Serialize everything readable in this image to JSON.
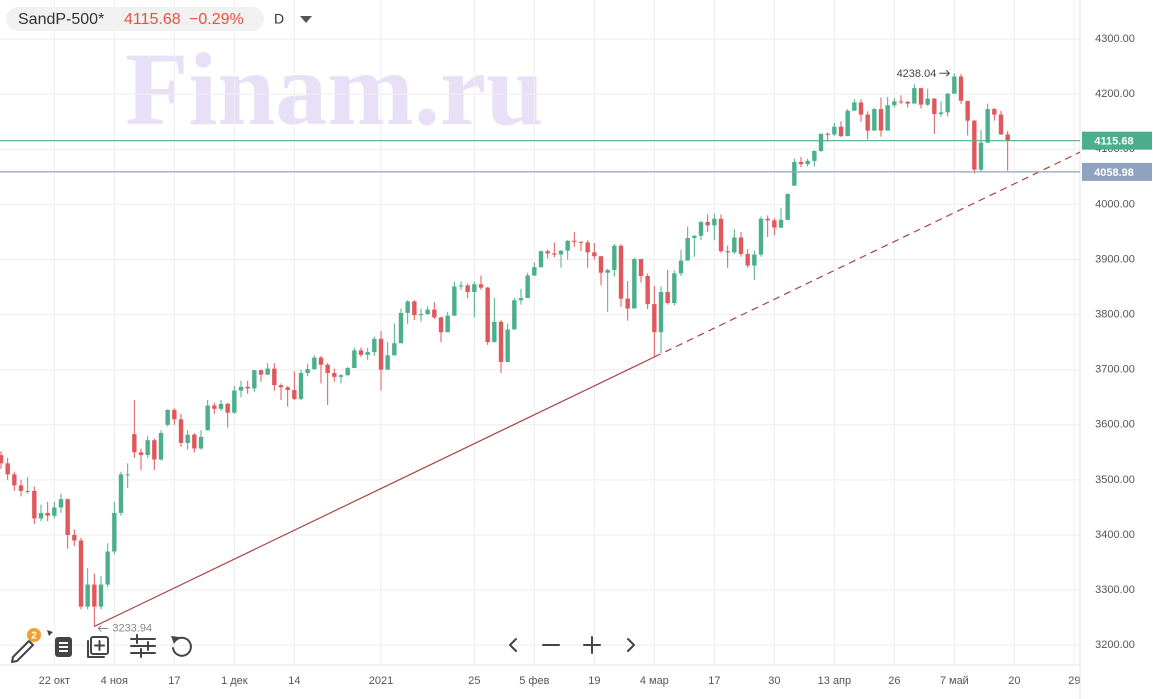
{
  "header": {
    "symbol": "SandP-500*",
    "last": "4115.68",
    "change": "−0.29%",
    "interval": "D",
    "badge": "2"
  },
  "chart_data": {
    "type": "candlestick",
    "watermark": "Finam.ru",
    "up_color": "#4caf8c",
    "down_color": "#e0585b",
    "grid": true,
    "ylim": [
      3164,
      4371
    ],
    "yticks": [
      {
        "value": 3200,
        "label": "3200.00"
      },
      {
        "value": 3300,
        "label": "3300.00"
      },
      {
        "value": 3400,
        "label": "3400.00"
      },
      {
        "value": 3500,
        "label": "3500.00"
      },
      {
        "value": 3600,
        "label": "3600.00"
      },
      {
        "value": 3700,
        "label": "3700.00"
      },
      {
        "value": 3800,
        "label": "3800.00"
      },
      {
        "value": 3900,
        "label": "3900.00"
      },
      {
        "value": 4000,
        "label": "4000.00"
      },
      {
        "value": 4100,
        "label": "4100.00"
      },
      {
        "value": 4200,
        "label": "4200.00"
      },
      {
        "value": 4300,
        "label": "4300.00"
      }
    ],
    "categories": [
      null,
      null,
      null,
      null,
      null,
      null,
      null,
      null,
      "22 окт",
      null,
      null,
      null,
      null,
      null,
      null,
      null,
      null,
      "4 ноя",
      null,
      null,
      null,
      null,
      null,
      null,
      null,
      null,
      "17",
      null,
      null,
      null,
      null,
      null,
      null,
      null,
      null,
      "1 дек",
      null,
      null,
      null,
      null,
      null,
      null,
      null,
      null,
      "14",
      null,
      null,
      null,
      null,
      null,
      null,
      null,
      null,
      null,
      null,
      null,
      null,
      "2021",
      null,
      null,
      null,
      null,
      null,
      null,
      null,
      null,
      null,
      null,
      null,
      null,
      null,
      "25",
      null,
      null,
      null,
      null,
      null,
      null,
      null,
      null,
      "5 фев",
      null,
      null,
      null,
      null,
      null,
      null,
      null,
      null,
      "19",
      null,
      null,
      null,
      null,
      null,
      null,
      null,
      null,
      "4 мар",
      null,
      null,
      null,
      null,
      null,
      null,
      null,
      null,
      "17",
      null,
      null,
      null,
      null,
      null,
      null,
      null,
      null,
      "30",
      null,
      null,
      null,
      null,
      null,
      null,
      null,
      null,
      "13 апр",
      null,
      null,
      null,
      null,
      null,
      null,
      null,
      null,
      "26",
      null,
      null,
      null,
      null,
      null,
      null,
      null,
      null,
      "7 май",
      null,
      null,
      null,
      null,
      null,
      null,
      null,
      null,
      "20",
      null,
      null,
      null,
      null,
      null,
      null,
      null,
      null,
      "29"
    ],
    "open": [
      3545,
      3530,
      3510,
      3490,
      3480,
      3480,
      3430,
      3440,
      3435,
      3450,
      3465,
      3400,
      3390,
      3270,
      3310,
      3270,
      3310,
      3370,
      3440,
      3510,
      3583,
      3550,
      3545,
      3572,
      3537,
      3600,
      3627,
      3610,
      3567,
      3582,
      3557,
      3590,
      3635,
      3629,
      3638,
      3622,
      3662,
      3669,
      3666,
      3699,
      3691,
      3702,
      3672,
      3668,
      3663,
      3647,
      3694,
      3701,
      3722,
      3709,
      3694,
      3687,
      3690,
      3703,
      3735,
      3727,
      3732,
      3756,
      3700,
      3726,
      3748,
      3803,
      3824,
      3799,
      3801,
      3809,
      3795,
      3768,
      3798,
      3851,
      3853,
      3841,
      3855,
      3849,
      3750,
      3787,
      3714,
      3773,
      3826,
      3830,
      3871,
      3886,
      3915,
      3911,
      3909,
      3916,
      3934,
      3932,
      3931,
      3913,
      3906,
      3876,
      3881,
      3925,
      3829,
      3811,
      3901,
      3870,
      3819,
      3768,
      3841,
      3821,
      3875,
      3898,
      3939,
      3943,
      3968,
      3962,
      3974,
      3915,
      3913,
      3940,
      3910,
      3889,
      3909,
      3974,
      3971,
      3958,
      3972,
      4034,
      4077,
      4073,
      4079,
      4097,
      4128,
      4127,
      4141,
      4124,
      4170,
      4185,
      4163,
      4134,
      4173,
      4134,
      4180,
      4187,
      4186,
      4183,
      4211,
      4181,
      4192,
      4164,
      4167,
      4201,
      4232,
      4188,
      4152,
      4063,
      4112,
      4173,
      4163,
      4127,
      null,
      null,
      null,
      null,
      null,
      null,
      null,
      null,
      null,
      null
    ],
    "high": [
      3552,
      3540,
      3515,
      3500,
      3505,
      3488,
      3455,
      3460,
      3460,
      3475,
      3466,
      3410,
      3395,
      3340,
      3330,
      3325,
      3385,
      3460,
      3515,
      3530,
      3645,
      3557,
      3580,
      3575,
      3590,
      3628,
      3630,
      3620,
      3590,
      3585,
      3590,
      3645,
      3640,
      3645,
      3640,
      3670,
      3680,
      3680,
      3700,
      3700,
      3712,
      3712,
      3675,
      3670,
      3697,
      3700,
      3711,
      3726,
      3725,
      3712,
      3702,
      3692,
      3705,
      3740,
      3740,
      3740,
      3760,
      3770,
      3750,
      3784,
      3811,
      3826,
      3826,
      3811,
      3815,
      3823,
      3796,
      3805,
      3860,
      3860,
      3856,
      3860,
      3871,
      3850,
      3830,
      3790,
      3784,
      3830,
      3847,
      3876,
      3895,
      3916,
      3918,
      3931,
      3917,
      3935,
      3950,
      3933,
      3935,
      3930,
      3906,
      3883,
      3928,
      3928,
      3861,
      3903,
      3901,
      3875,
      3852,
      3851,
      3881,
      3880,
      3918,
      3960,
      3944,
      3970,
      3982,
      3983,
      3982,
      3925,
      3955,
      3950,
      3919,
      3916,
      3978,
      3980,
      3975,
      3994,
      4020,
      4083,
      4086,
      4083,
      4098,
      4129,
      4131,
      4148,
      4151,
      4173,
      4191,
      4191,
      4169,
      4175,
      4194,
      4195,
      4193,
      4198,
      4188,
      4218,
      4212,
      4210,
      4193,
      4187,
      4202,
      4238.04,
      4237,
      4188,
      4153,
      4135,
      4183,
      4175,
      4170,
      4133,
      null,
      null,
      null,
      null,
      null,
      null,
      null,
      null,
      null,
      null
    ],
    "low": [
      3520,
      3500,
      3480,
      3470,
      3475,
      3420,
      3425,
      3425,
      3430,
      3440,
      3375,
      3380,
      3265,
      3265,
      3233.94,
      3265,
      3305,
      3365,
      3435,
      3485,
      3540,
      3518,
      3540,
      3518,
      3535,
      3597,
      3600,
      3560,
      3555,
      3550,
      3555,
      3590,
      3620,
      3625,
      3595,
      3620,
      3650,
      3656,
      3660,
      3678,
      3690,
      3662,
      3645,
      3633,
      3645,
      3645,
      3688,
      3700,
      3675,
      3636,
      3678,
      3675,
      3689,
      3703,
      3723,
      3718,
      3725,
      3662,
      3700,
      3726,
      3748,
      3783,
      3790,
      3787,
      3800,
      3792,
      3750,
      3768,
      3798,
      3845,
      3830,
      3795,
      3845,
      3745,
      3750,
      3694,
      3714,
      3773,
      3818,
      3830,
      3870,
      3886,
      3902,
      3904,
      3885,
      3900,
      3923,
      3915,
      3885,
      3900,
      3853,
      3805,
      3869,
      3814,
      3789,
      3811,
      3858,
      3810,
      3723,
      3730,
      3818,
      3817,
      3870,
      3898,
      3905,
      3935,
      3950,
      3935,
      3912,
      3885,
      3910,
      3905,
      3885,
      3863,
      3905,
      3941,
      3944,
      3957,
      3972,
      4034,
      4068,
      4069,
      4069,
      4095,
      4114,
      4124,
      4122,
      4124,
      4170,
      4150,
      4118,
      4134,
      4123,
      4134,
      4176,
      4182,
      4176,
      4183,
      4174,
      4179,
      4128,
      4159,
      4160,
      4201,
      4182,
      4125,
      4056,
      4060,
      4112,
      4152,
      4126,
      4061,
      null,
      null,
      null,
      null,
      null,
      null,
      null,
      null,
      null,
      null
    ],
    "close": [
      3530,
      3510,
      3490,
      3480,
      3480,
      3430,
      3440,
      3435,
      3450,
      3465,
      3400,
      3390,
      3270,
      3310,
      3270,
      3310,
      3370,
      3440,
      3510,
      3510,
      3550,
      3545,
      3572,
      3537,
      3585,
      3627,
      3610,
      3567,
      3582,
      3557,
      3578,
      3635,
      3629,
      3638,
      3622,
      3662,
      3669,
      3666,
      3699,
      3691,
      3702,
      3672,
      3668,
      3663,
      3647,
      3694,
      3701,
      3722,
      3709,
      3694,
      3687,
      3690,
      3703,
      3735,
      3727,
      3732,
      3756,
      3700,
      3726,
      3748,
      3803,
      3824,
      3799,
      3801,
      3809,
      3795,
      3768,
      3798,
      3851,
      3853,
      3841,
      3855,
      3849,
      3750,
      3787,
      3714,
      3773,
      3826,
      3830,
      3871,
      3886,
      3915,
      3911,
      3909,
      3916,
      3934,
      3932,
      3931,
      3913,
      3906,
      3876,
      3881,
      3925,
      3829,
      3811,
      3901,
      3870,
      3819,
      3768,
      3841,
      3821,
      3875,
      3898,
      3939,
      3943,
      3968,
      3962,
      3974,
      3915,
      3913,
      3940,
      3910,
      3889,
      3909,
      3974,
      3971,
      3958,
      3972,
      4019,
      4077,
      4073,
      4079,
      4097,
      4128,
      4127,
      4141,
      4124,
      4170,
      4185,
      4163,
      4134,
      4173,
      4134,
      4180,
      4187,
      4186,
      4183,
      4211,
      4181,
      4192,
      4164,
      4167,
      4201,
      4232,
      4188,
      4152,
      4063,
      4112,
      4173,
      4163,
      4127,
      4115.68,
      null,
      null,
      null,
      null,
      null,
      null,
      null,
      null,
      null,
      null
    ],
    "price_lines": [
      {
        "value": 4115.68,
        "color": "#4caf8c"
      },
      {
        "value": 4058.98,
        "color": "#8fa3bf"
      }
    ],
    "trendline": {
      "x": [
        14,
        98
      ],
      "values": [
        3233.94,
        3723
      ],
      "color": "#a94442"
    },
    "annotations": [
      {
        "x": 143,
        "value": 4238.04,
        "label": "4238.04"
      },
      {
        "x": 14,
        "value": 3233.94,
        "label": "3233.94"
      }
    ]
  }
}
